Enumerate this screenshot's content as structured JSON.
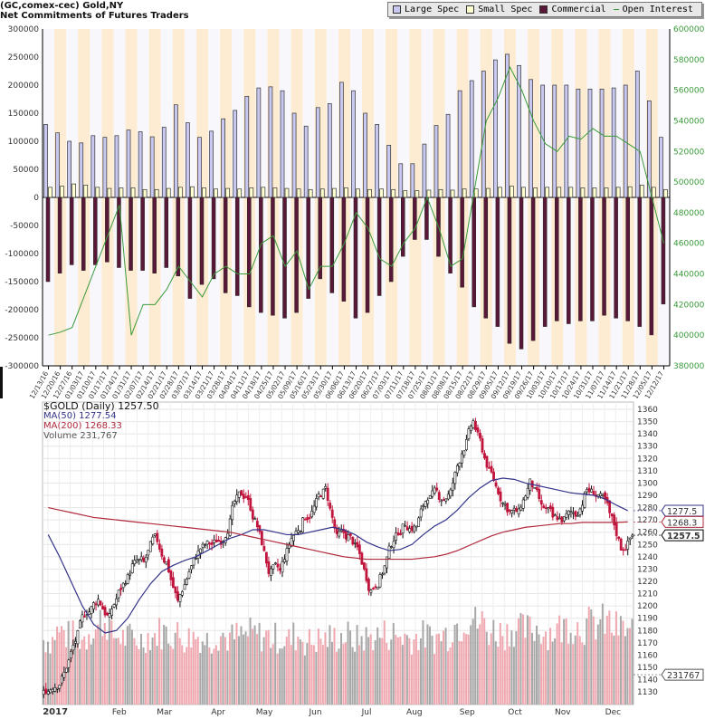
{
  "chart_data": [
    {
      "type": "bar",
      "title": "(GC,comex-cec) Gold,NY",
      "subtitle": "Net Commitments of Futures Traders",
      "legend": [
        "Large Spec",
        "Small Spec",
        "Commercial",
        "Open Interest"
      ],
      "legend_placement": "top-right",
      "colors": {
        "large_spec": "#c8c8f0",
        "small_spec": "#ffffd0",
        "commercial": "#5a1838",
        "open_interest": "#3a9a3a"
      },
      "categories": [
        "12/13/16",
        "12/20/16",
        "12/27/16",
        "01/03/17",
        "01/10/17",
        "01/17/17",
        "01/24/17",
        "01/31/17",
        "02/07/17",
        "02/14/17",
        "02/21/17",
        "02/28/17",
        "03/07/17",
        "03/14/17",
        "03/21/17",
        "03/28/17",
        "04/04/17",
        "04/11/17",
        "04/18/17",
        "04/25/17",
        "05/02/17",
        "05/09/17",
        "05/16/17",
        "05/23/17",
        "05/30/17",
        "06/06/17",
        "06/13/17",
        "06/20/17",
        "06/27/17",
        "07/03/17",
        "07/11/17",
        "07/18/17",
        "07/25/17",
        "08/01/17",
        "08/08/17",
        "08/15/17",
        "08/22/17",
        "08/29/17",
        "09/05/17",
        "09/12/17",
        "09/19/17",
        "09/26/17",
        "10/03/17",
        "10/10/17",
        "10/17/17",
        "10/24/17",
        "10/31/17",
        "11/07/17",
        "11/14/17",
        "11/21/17",
        "11/28/17",
        "12/05/17",
        "12/12/17"
      ],
      "series": [
        {
          "name": "Large Spec",
          "values": [
            130000,
            115000,
            100000,
            97000,
            110000,
            107000,
            110000,
            120000,
            117000,
            108000,
            125000,
            165000,
            133000,
            107000,
            118000,
            140000,
            155000,
            180000,
            195000,
            197000,
            190000,
            150000,
            127000,
            160000,
            167000,
            205000,
            190000,
            150000,
            130000,
            93000,
            60000,
            60000,
            95000,
            128000,
            148000,
            190000,
            208000,
            225000,
            245000,
            255000,
            235000,
            210000,
            200000,
            200000,
            200000,
            193000,
            193000,
            193000,
            195000,
            200000,
            225000,
            172000,
            107000
          ]
        },
        {
          "name": "Small Spec",
          "values": [
            18000,
            20000,
            24000,
            22000,
            18000,
            16000,
            17000,
            17000,
            14000,
            14000,
            16000,
            18000,
            19000,
            17000,
            15000,
            16000,
            15000,
            17000,
            18000,
            17000,
            16000,
            15000,
            14000,
            15000,
            16000,
            17000,
            15000,
            14000,
            15000,
            14000,
            12000,
            12000,
            13000,
            14000,
            13000,
            15000,
            15000,
            16000,
            18000,
            20000,
            18000,
            17000,
            18000,
            18000,
            18000,
            17000,
            17000,
            17000,
            18000,
            19000,
            22000,
            18000,
            14000
          ]
        },
        {
          "name": "Commercial",
          "values": [
            -150000,
            -135000,
            -120000,
            -130000,
            -120000,
            -115000,
            -125000,
            -130000,
            -130000,
            -135000,
            -125000,
            -140000,
            -180000,
            -155000,
            -145000,
            -170000,
            -175000,
            -195000,
            -205000,
            -210000,
            -215000,
            -205000,
            -180000,
            -145000,
            -170000,
            -185000,
            -215000,
            -205000,
            -175000,
            -150000,
            -105000,
            -75000,
            -75000,
            -105000,
            -135000,
            -160000,
            -195000,
            -215000,
            -230000,
            -260000,
            -270000,
            -255000,
            -230000,
            -220000,
            -225000,
            -220000,
            -220000,
            -210000,
            -215000,
            -220000,
            -230000,
            -245000,
            -190000
          ]
        },
        {
          "name": "Open Interest",
          "axis": "right",
          "values": [
            400000,
            402000,
            405000,
            425000,
            445000,
            465000,
            485000,
            400000,
            420000,
            420000,
            430000,
            445000,
            435000,
            425000,
            440000,
            445000,
            440000,
            440000,
            460000,
            465000,
            445000,
            455000,
            430000,
            445000,
            445000,
            460000,
            480000,
            470000,
            450000,
            445000,
            460000,
            470000,
            490000,
            470000,
            445000,
            450000,
            495000,
            540000,
            555000,
            575000,
            560000,
            540000,
            525000,
            520000,
            530000,
            528000,
            535000,
            530000,
            530000,
            525000,
            520000,
            490000,
            460000
          ]
        }
      ],
      "ylim": [
        -300000,
        300000
      ],
      "yticks": [
        300000,
        250000,
        200000,
        150000,
        100000,
        50000,
        0,
        -50000,
        -100000,
        -150000,
        -200000,
        -250000,
        -300000
      ],
      "y2lim": [
        380000,
        600000
      ],
      "y2ticks": [
        600000,
        580000,
        560000,
        540000,
        520000,
        500000,
        480000,
        460000,
        440000,
        420000,
        400000,
        380000
      ]
    },
    {
      "type": "candlestick",
      "title": "$GOLD (Daily) 1257.50",
      "legend": {
        "price": "$GOLD (Daily) 1257.50",
        "ma50": "MA(50) 1277.54",
        "ma200": "MA(200) 1268.33",
        "volume": "Volume 231,767"
      },
      "colors": {
        "up": "#111111",
        "down": "#c0143c",
        "ma50": "#33338a",
        "ma200": "#b0283c",
        "vol_up": "#a8a8a8",
        "vol_down": "#f0a8b0"
      },
      "weekly_close": [
        1135,
        1145,
        1172,
        1196,
        1205,
        1190,
        1215,
        1232,
        1235,
        1255,
        1235,
        1203,
        1228,
        1247,
        1250,
        1255,
        1285,
        1290,
        1265,
        1228,
        1228,
        1255,
        1268,
        1280,
        1295,
        1255,
        1256,
        1242,
        1212,
        1228,
        1255,
        1268,
        1265,
        1290,
        1290,
        1292,
        1325,
        1350,
        1320,
        1297,
        1280,
        1275,
        1300,
        1280,
        1272,
        1270,
        1275,
        1295,
        1290,
        1275,
        1248,
        1257.5
      ],
      "ma50": [
        1258,
        1240,
        1220,
        1200,
        1185,
        1178,
        1180,
        1190,
        1205,
        1218,
        1228,
        1233,
        1237,
        1240,
        1245,
        1250,
        1255,
        1258,
        1262,
        1262,
        1260,
        1258,
        1258,
        1260,
        1262,
        1264,
        1262,
        1258,
        1252,
        1248,
        1245,
        1246,
        1250,
        1258,
        1265,
        1270,
        1278,
        1288,
        1296,
        1302,
        1304,
        1303,
        1300,
        1298,
        1296,
        1294,
        1292,
        1291,
        1290,
        1287,
        1282,
        1277.54
      ],
      "ma200": [
        1280,
        1278,
        1276,
        1274,
        1272,
        1271,
        1270,
        1269,
        1268,
        1267,
        1266,
        1265,
        1264,
        1263,
        1262,
        1261,
        1260,
        1258,
        1256,
        1254,
        1252,
        1250,
        1248,
        1246,
        1244,
        1242,
        1240,
        1239,
        1238,
        1238,
        1238,
        1238,
        1238,
        1239,
        1240,
        1242,
        1245,
        1249,
        1253,
        1257,
        1260,
        1262,
        1264,
        1265,
        1266,
        1267,
        1267,
        1268,
        1268,
        1268,
        1268,
        1268.33
      ],
      "weekly_volume_k": [
        170,
        190,
        180,
        175,
        200,
        220,
        180,
        175,
        170,
        180,
        190,
        185,
        175,
        180,
        170,
        185,
        175,
        180,
        185,
        180,
        175,
        170,
        180,
        165,
        170,
        175,
        180,
        170,
        175,
        180,
        185,
        180,
        175,
        180,
        175,
        185,
        210,
        230,
        215,
        195,
        190,
        200,
        195,
        200,
        190,
        200,
        210,
        205,
        210,
        215,
        200,
        195
      ],
      "price_ticks": [
        1360,
        1350,
        1340,
        1330,
        1320,
        1310,
        1300,
        1290,
        1280,
        1270,
        1260,
        1250,
        1240,
        1230,
        1220,
        1210,
        1200,
        1190,
        1180,
        1170,
        1160,
        1150,
        1140,
        1130
      ],
      "markers": {
        "ma50": "1277.5",
        "ma200": "1268.3",
        "last": "1257.5",
        "volume": "231767"
      },
      "x_labels": [
        "2017",
        "Feb",
        "Mar",
        "Apr",
        "May",
        "Jun",
        "Jul",
        "Aug",
        "Sep",
        "Oct",
        "Nov",
        "Dec"
      ]
    }
  ]
}
